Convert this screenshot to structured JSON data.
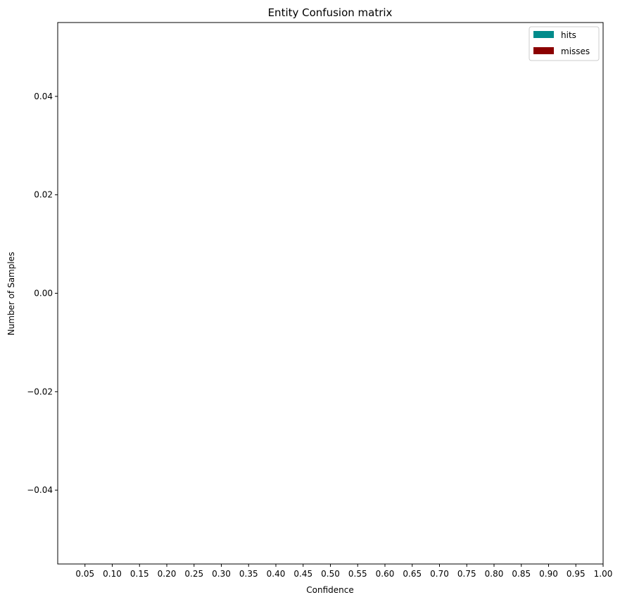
{
  "chart_data": {
    "type": "bar",
    "title": "Entity Confusion matrix",
    "xlabel": "Confidence",
    "ylabel": "Number of Samples",
    "x_ticks": [
      "0.05",
      "0.10",
      "0.15",
      "0.20",
      "0.25",
      "0.30",
      "0.35",
      "0.40",
      "0.45",
      "0.50",
      "0.55",
      "0.60",
      "0.65",
      "0.70",
      "0.75",
      "0.80",
      "0.85",
      "0.90",
      "0.95",
      "1.00"
    ],
    "xlim": [
      0.0,
      1.0
    ],
    "y_ticks": [
      "0.04",
      "0.02",
      "0.00",
      "−0.02",
      "−0.04"
    ],
    "y_tick_values": [
      0.04,
      0.02,
      0.0,
      -0.02,
      -0.04
    ],
    "ylim": [
      -0.055,
      0.055
    ],
    "grid": false,
    "legend_position": "top-right",
    "series": [
      {
        "name": "hits",
        "color": "#008b8b",
        "values": []
      },
      {
        "name": "misses",
        "color": "#8b0000",
        "values": []
      }
    ]
  }
}
